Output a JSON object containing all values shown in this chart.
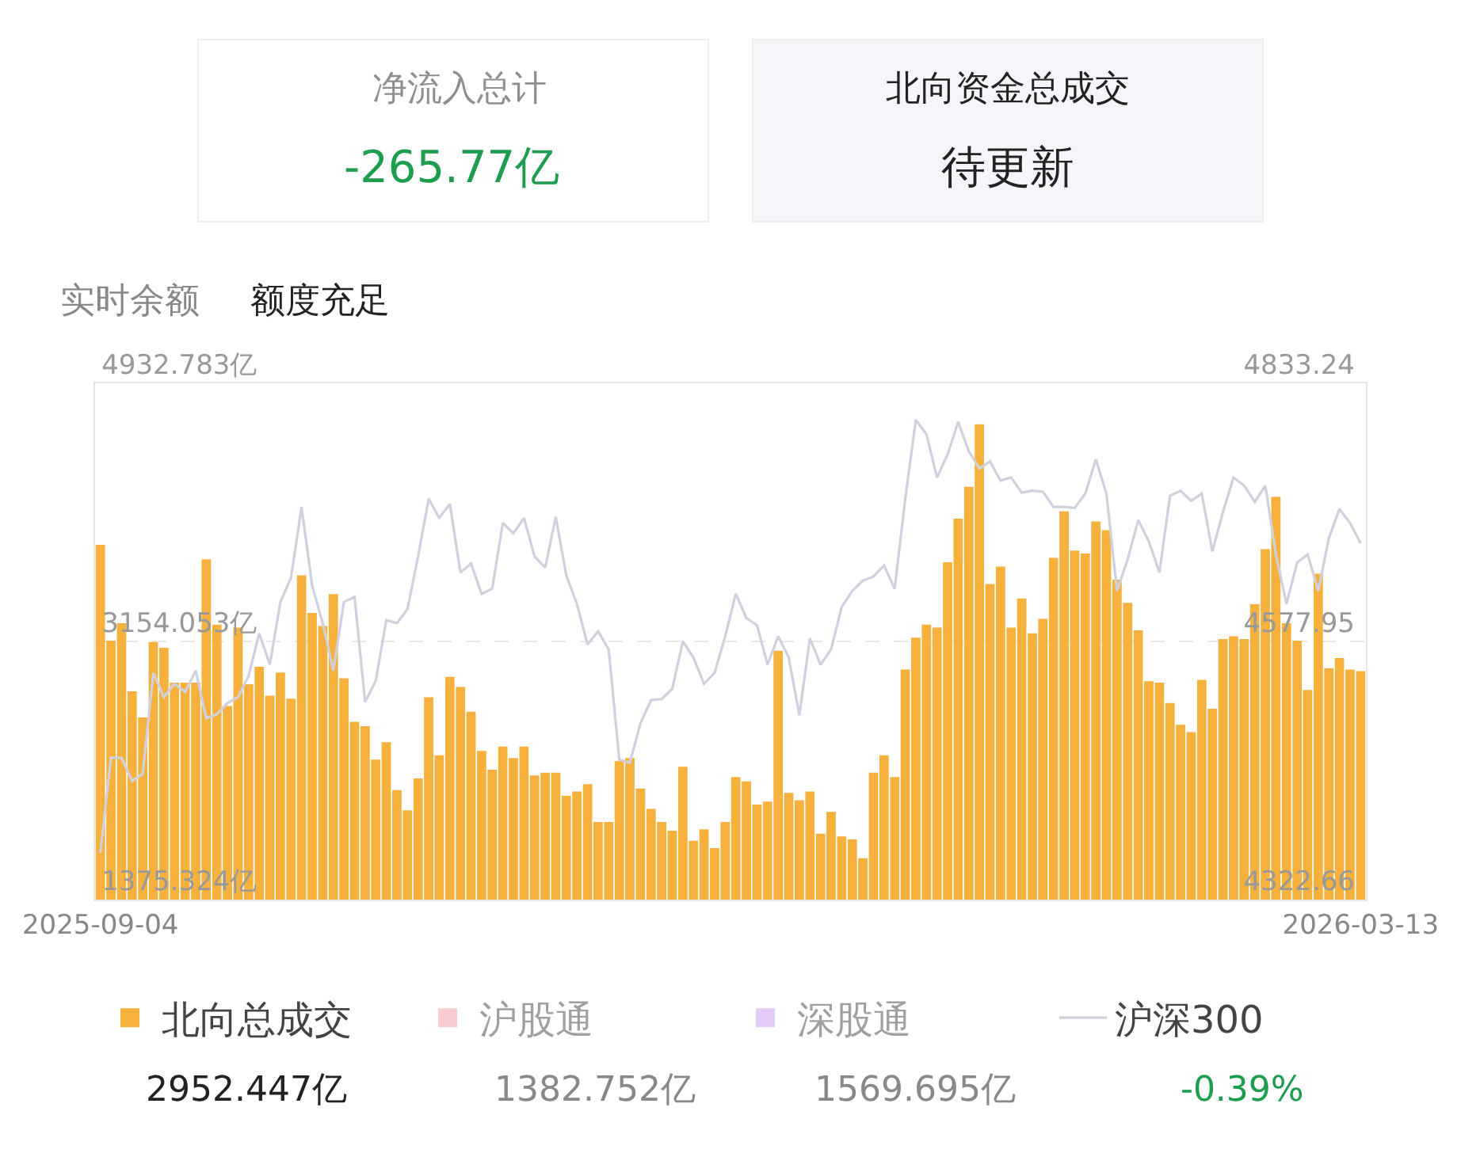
{
  "chart_data": {
    "type": "bar",
    "categories": [
      "2025-09-04",
      null,
      null,
      null,
      null,
      null,
      null,
      null,
      null,
      null,
      null,
      null,
      null,
      null,
      null,
      null,
      null,
      null,
      null,
      null,
      null,
      null,
      null,
      null,
      null,
      null,
      null,
      null,
      null,
      null,
      null,
      null,
      null,
      null,
      null,
      null,
      null,
      null,
      null,
      null,
      null,
      null,
      null,
      null,
      null,
      null,
      null,
      null,
      null,
      null,
      null,
      null,
      null,
      null,
      null,
      null,
      null,
      null,
      null,
      null,
      null,
      null,
      null,
      null,
      null,
      null,
      null,
      null,
      null,
      null,
      null,
      null,
      null,
      null,
      null,
      null,
      null,
      null,
      null,
      null,
      null,
      null,
      null,
      null,
      null,
      null,
      null,
      null,
      null,
      null,
      null,
      null,
      null,
      null,
      null,
      null,
      null,
      null,
      null,
      null,
      null,
      null,
      null,
      null,
      null,
      null,
      null,
      null,
      null,
      null,
      null,
      null,
      null,
      null,
      null,
      null,
      null,
      null,
      null,
      "2026-03-13"
    ],
    "series": [
      {
        "name": "北向总成交",
        "color": "#f6b13d",
        "values": [
          3820,
          3160,
          3280,
          2810,
          2630,
          3150,
          3110,
          2870,
          2870,
          2870,
          3720,
          3270,
          2710,
          3250,
          2860,
          2980,
          2780,
          2940,
          2760,
          3610,
          3350,
          3260,
          3480,
          2900,
          2600,
          2570,
          2340,
          2460,
          2130,
          1990,
          2210,
          2770,
          2370,
          2910,
          2840,
          2670,
          2400,
          2270,
          2430,
          2350,
          2430,
          2230,
          2250,
          2250,
          2090,
          2120,
          2170,
          1910,
          1910,
          2330,
          2350,
          2140,
          2000,
          1910,
          1850,
          2290,
          1780,
          1860,
          1730,
          1910,
          2220,
          2190,
          2030,
          2050,
          3090,
          2110,
          2060,
          2120,
          1830,
          1980,
          1810,
          1790,
          1660,
          2250,
          2370,
          2220,
          2960,
          3180,
          3270,
          3250,
          3700,
          4000,
          4220,
          4650,
          3550,
          3670,
          3250,
          3450,
          3210,
          3310,
          3730,
          4050,
          3780,
          3760,
          3980,
          3920,
          3580,
          3420,
          3230,
          2880,
          2870,
          2730,
          2580,
          2530,
          2890,
          2690,
          3170,
          3190,
          3170,
          3410,
          3790,
          4150,
          3280,
          3160,
          2820,
          3620,
          2970,
          3040,
          2960,
          2950
        ]
      },
      {
        "name": "沪股通",
        "color": "#f49aa6",
        "values": [
          null,
          null,
          null,
          null,
          null,
          null,
          null,
          null,
          null,
          null,
          null,
          null,
          null,
          null,
          null,
          null,
          null,
          null,
          null,
          null,
          null,
          null,
          null,
          null,
          null,
          null,
          null,
          null,
          null,
          null,
          null,
          null,
          null,
          null,
          null,
          null,
          null,
          null,
          null,
          null,
          null,
          null,
          null,
          null,
          null,
          null,
          null,
          null,
          null,
          null,
          null,
          null,
          null,
          null,
          null,
          null,
          null,
          null,
          null,
          null,
          null,
          null,
          null,
          null,
          null,
          null,
          null,
          null,
          null,
          null,
          null,
          null,
          null,
          null,
          null,
          null,
          null,
          null,
          null,
          null,
          null,
          null,
          null,
          null,
          null,
          null,
          null,
          null,
          null,
          null,
          null,
          null,
          null,
          null,
          null,
          null,
          null,
          null,
          null,
          null,
          null,
          null,
          null,
          null,
          null,
          null,
          null,
          null,
          null,
          null,
          null,
          null,
          null,
          null,
          null,
          null,
          null,
          null,
          null,
          null
        ]
      },
      {
        "name": "深股通",
        "color": "#c99af0",
        "values": [
          null,
          null,
          null,
          null,
          null,
          null,
          null,
          null,
          null,
          null,
          null,
          null,
          null,
          null,
          null,
          null,
          null,
          null,
          null,
          null,
          null,
          null,
          null,
          null,
          null,
          null,
          null,
          null,
          null,
          null,
          null,
          null,
          null,
          null,
          null,
          null,
          null,
          null,
          null,
          null,
          null,
          null,
          null,
          null,
          null,
          null,
          null,
          null,
          null,
          null,
          null,
          null,
          null,
          null,
          null,
          null,
          null,
          null,
          null,
          null,
          null,
          null,
          null,
          null,
          null,
          null,
          null,
          null,
          null,
          null,
          null,
          null,
          null,
          null,
          null,
          null,
          null,
          null,
          null,
          null,
          null,
          null,
          null,
          null,
          null,
          null,
          null,
          null,
          null,
          null,
          null,
          null,
          null,
          null,
          null,
          null,
          null,
          null,
          null,
          null,
          null,
          null,
          null,
          null,
          null,
          null,
          null,
          null,
          null,
          null,
          null,
          null,
          null,
          null,
          null,
          null,
          null,
          null,
          null,
          null
        ]
      },
      {
        "name": "沪深300",
        "type": "line",
        "axis": "y2",
        "color": "#cfd2de",
        "values": [
          4369,
          4463,
          4463,
          4440,
          4447,
          4547,
          4523,
          4536,
          4528,
          4549,
          4502,
          4506,
          4517,
          4523,
          4544,
          4586,
          4555,
          4617,
          4641,
          4711,
          4633,
          4596,
          4549,
          4617,
          4622,
          4518,
          4539,
          4599,
          4596,
          4610,
          4662,
          4719,
          4700,
          4714,
          4646,
          4655,
          4625,
          4630,
          4695,
          4685,
          4700,
          4662,
          4651,
          4701,
          4643,
          4615,
          4575,
          4588,
          4570,
          4461,
          4458,
          4497,
          4520,
          4521,
          4531,
          4578,
          4562,
          4536,
          4547,
          4583,
          4625,
          4601,
          4594,
          4555,
          4583,
          4562,
          4505,
          4581,
          4555,
          4570,
          4612,
          4628,
          4638,
          4642,
          4653,
          4630,
          4719,
          4797,
          4783,
          4740,
          4763,
          4795,
          4766,
          4749,
          4756,
          4737,
          4740,
          4725,
          4727,
          4726,
          4711,
          4711,
          4710,
          4724,
          4758,
          4724,
          4628,
          4659,
          4698,
          4677,
          4646,
          4722,
          4727,
          4717,
          4724,
          4667,
          4706,
          4740,
          4732,
          4716,
          4732,
          4664,
          4615,
          4656,
          4664,
          4628,
          4680,
          4709,
          4695,
          4675
        ]
      }
    ],
    "ylim": [
      1375.324,
      4932.783
    ],
    "yticks": [
      {
        "value": 1375.324,
        "label": "1375.324亿"
      },
      {
        "value": 3154.053,
        "label": "3154.053亿"
      },
      {
        "value": 4932.783,
        "label": "4932.783亿"
      }
    ],
    "y2lim": [
      4322.66,
      4833.24
    ],
    "y2ticks": [
      4322.66,
      4577.95,
      4833.24
    ],
    "grid": "y",
    "legend": "bottom",
    "annotations": [
      "净流入总计",
      "-265.77亿",
      "北向资金总成交",
      "待更新",
      "实时余额",
      "额度充足",
      "2952.447亿",
      "1382.752亿",
      "1569.695亿",
      "-0.39%"
    ]
  }
}
